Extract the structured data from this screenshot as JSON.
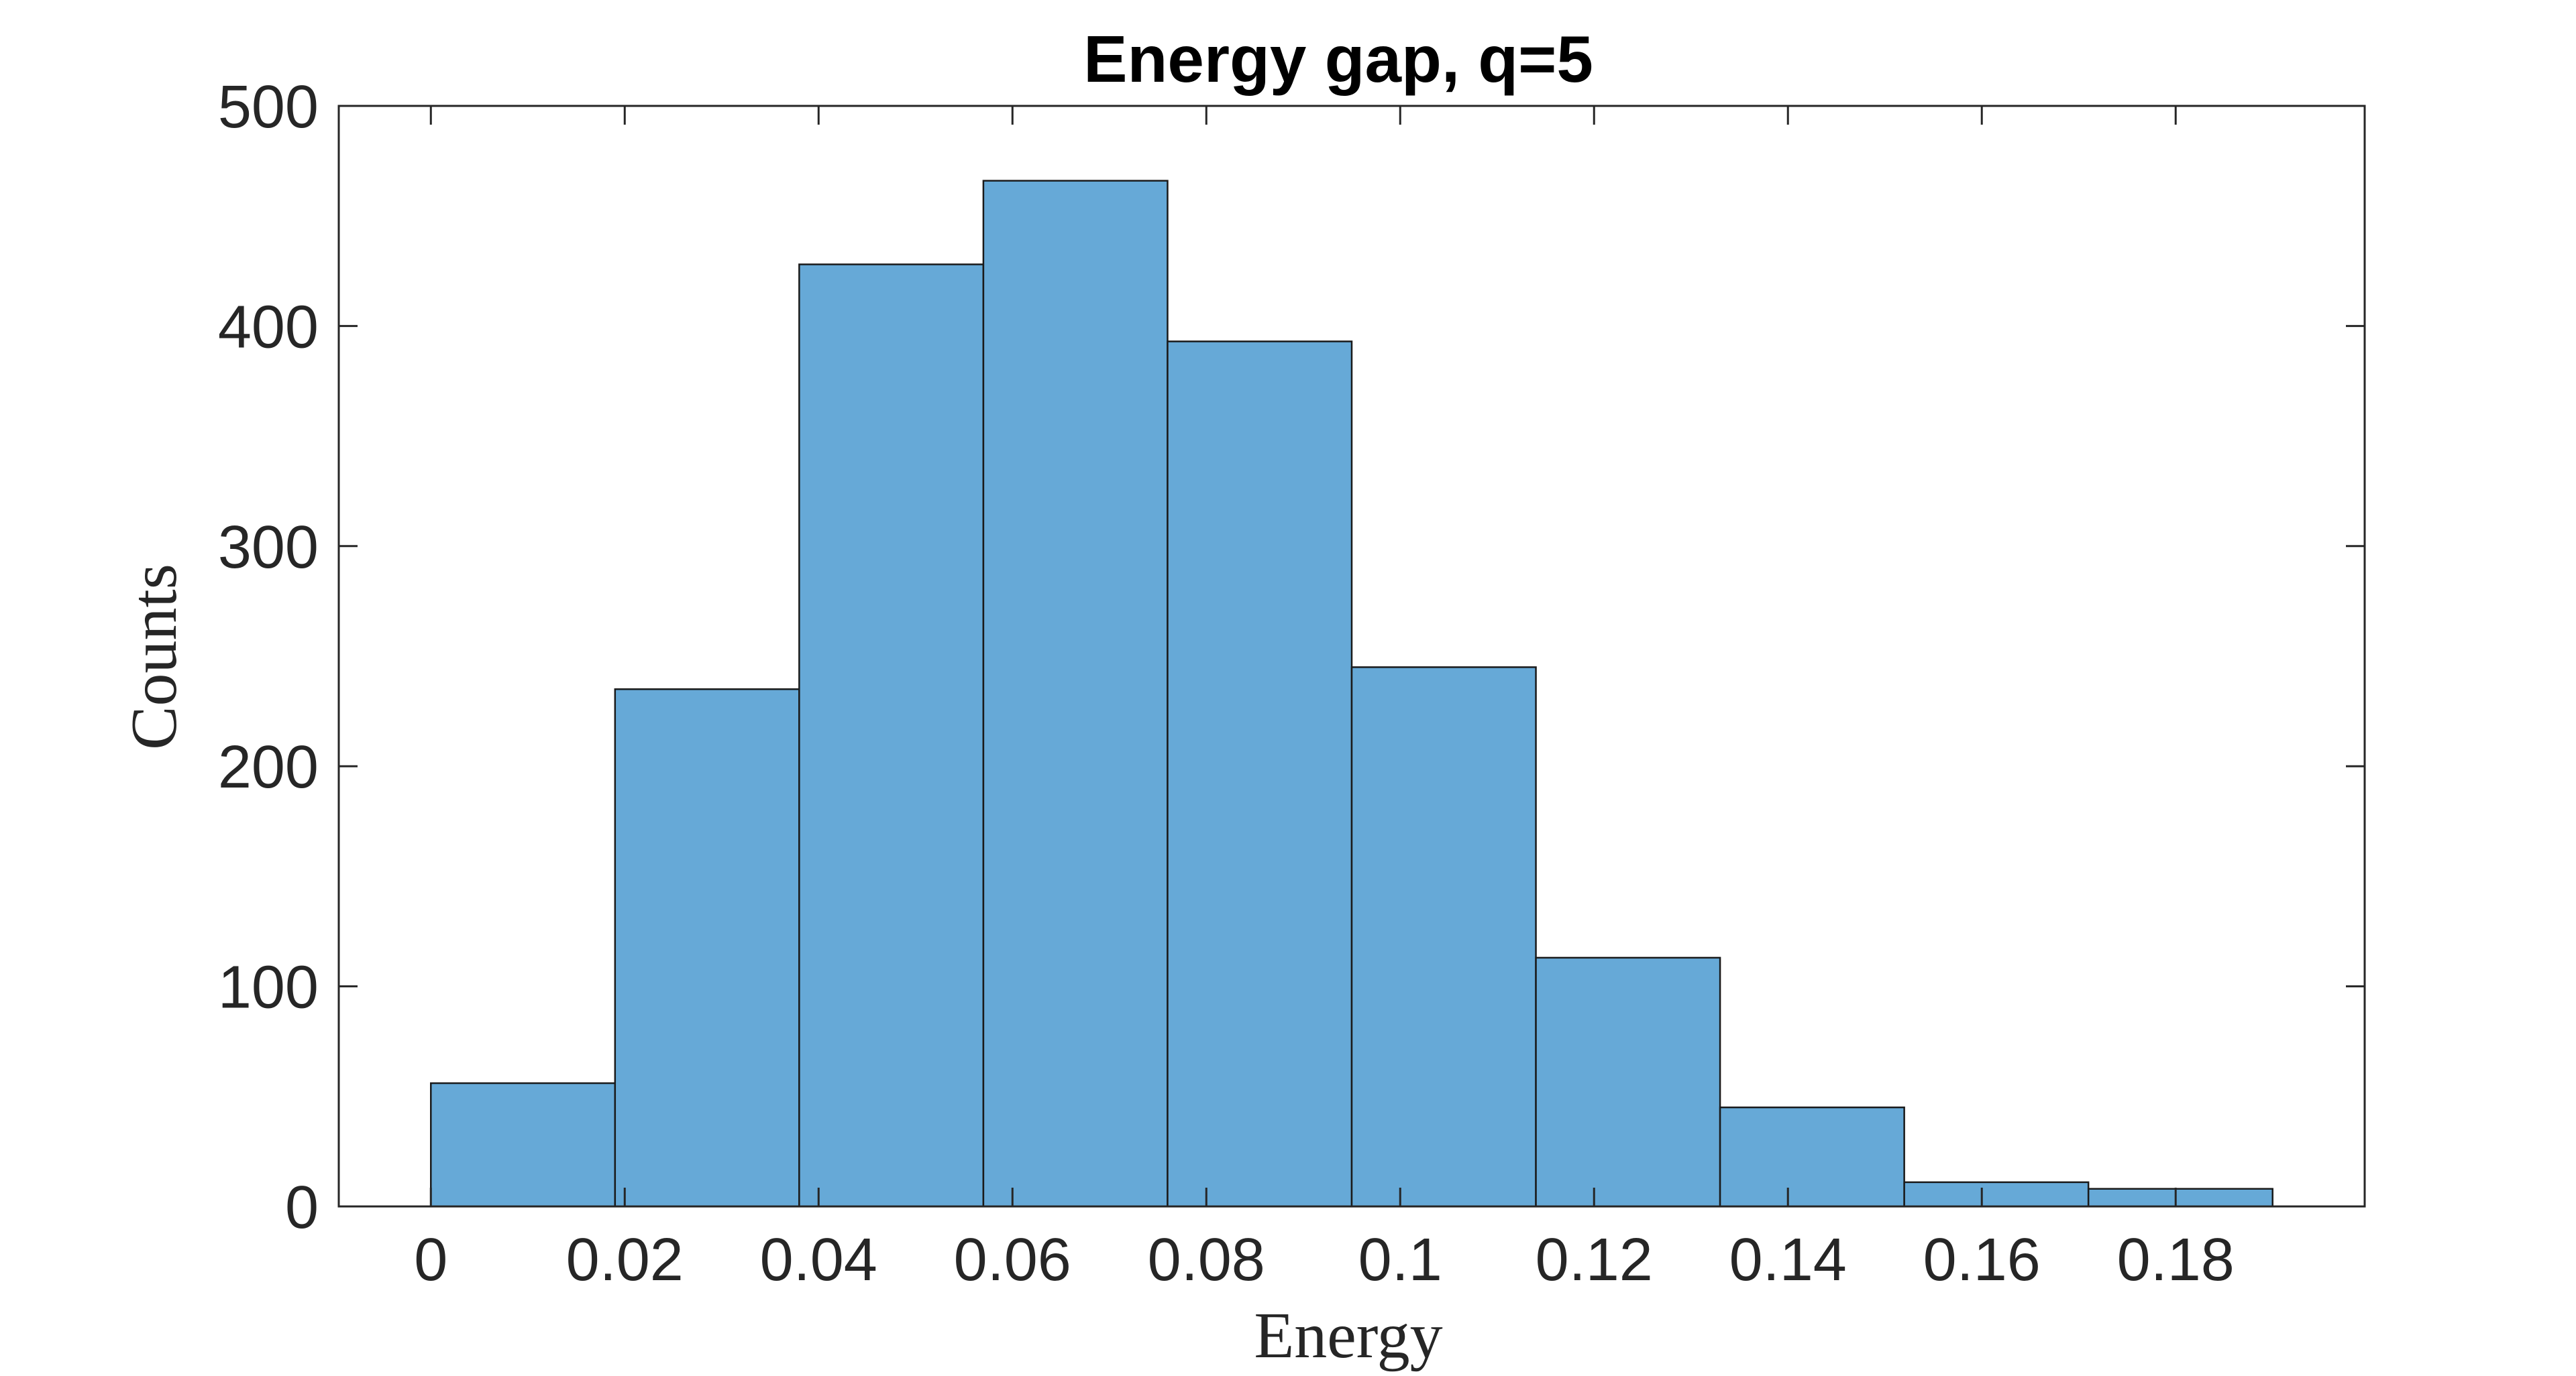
{
  "chart_data": {
    "type": "bar",
    "title": "Energy gap, q=5",
    "xlabel": "Energy",
    "ylabel": "Counts",
    "xlim": [
      -0.0095,
      0.1995
    ],
    "ylim": [
      0,
      500
    ],
    "xticks": [
      0,
      0.02,
      0.04,
      0.06,
      0.08,
      0.1,
      0.12,
      0.14,
      0.16,
      0.18
    ],
    "xtick_labels": [
      "0",
      "0.02",
      "0.04",
      "0.06",
      "0.08",
      "0.1",
      "0.12",
      "0.14",
      "0.16",
      "0.18"
    ],
    "yticks": [
      0,
      100,
      200,
      300,
      400,
      500
    ],
    "ytick_labels": [
      "0",
      "100",
      "200",
      "300",
      "400",
      "500"
    ],
    "bin_edges": [
      0,
      0.019,
      0.038,
      0.057,
      0.076,
      0.095,
      0.114,
      0.133,
      0.152,
      0.171,
      0.19
    ],
    "values": [
      56,
      235,
      428,
      466,
      393,
      245,
      113,
      45,
      11,
      8
    ],
    "grid": false,
    "colors": {
      "bar_fill": "#66a9d7",
      "bar_edge": "#1a1a1a",
      "axes": "#262626"
    }
  }
}
